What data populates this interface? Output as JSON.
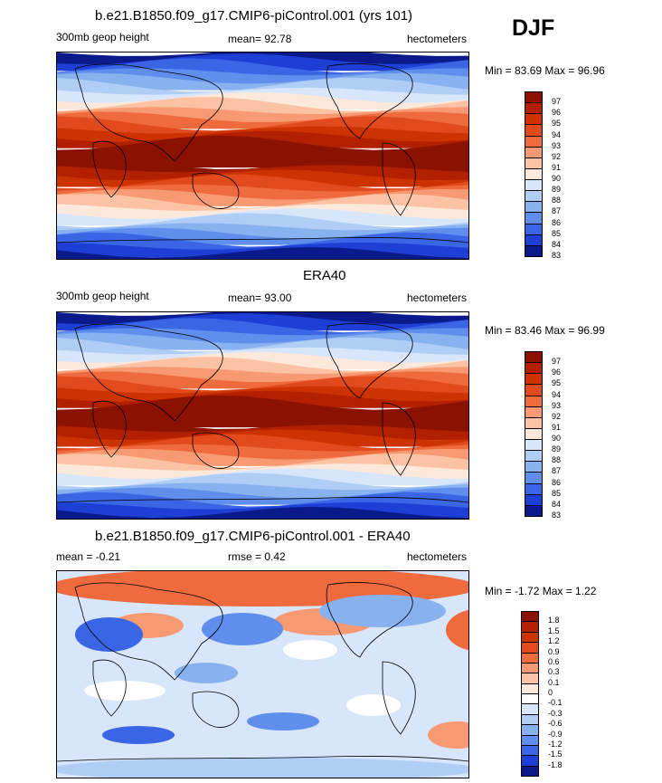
{
  "season": "DJF",
  "panels": [
    {
      "id": "model",
      "title": "b.e21.B1850.f09_g17.CMIP6-piControl.001 (yrs 101)",
      "left_label": "300mb geop height",
      "center_label": "mean=  92.78",
      "right_label": "hectometers",
      "minmax": "Min =  83.69 Max =  96.96",
      "colorbar_labels": [
        "97",
        "96",
        "95",
        "94",
        "93",
        "92",
        "91",
        "90",
        "89",
        "88",
        "87",
        "86",
        "85",
        "84",
        "83"
      ],
      "colors": [
        "#8b1200",
        "#b22000",
        "#cc3300",
        "#e04a1c",
        "#ef6a3c",
        "#f79a73",
        "#fbc3a4",
        "#fde8dc",
        "#d8e6fb",
        "#b0cdf6",
        "#88b1f0",
        "#5f8eec",
        "#3a66e6",
        "#1d3fd6",
        "#0a1a8a"
      ]
    },
    {
      "id": "obs",
      "title": "ERA40",
      "left_label": "300mb geop height",
      "center_label": "mean=  93.00",
      "right_label": "hectometers",
      "minmax": "Min =  83.46 Max =  96.99",
      "colorbar_labels": [
        "97",
        "96",
        "95",
        "94",
        "93",
        "92",
        "91",
        "90",
        "89",
        "88",
        "87",
        "86",
        "85",
        "84",
        "83"
      ],
      "colors": [
        "#8b1200",
        "#b22000",
        "#cc3300",
        "#e04a1c",
        "#ef6a3c",
        "#f79a73",
        "#fbc3a4",
        "#fde8dc",
        "#d8e6fb",
        "#b0cdf6",
        "#88b1f0",
        "#5f8eec",
        "#3a66e6",
        "#1d3fd6",
        "#0a1a8a"
      ]
    },
    {
      "id": "diff",
      "title": "b.e21.B1850.f09_g17.CMIP6-piControl.001 - ERA40",
      "left_label": "mean =  -0.21",
      "center_label": "rmse =   0.42",
      "right_label": "hectometers",
      "minmax": "Min =  -1.72 Max =   1.22",
      "colorbar_labels": [
        "1.8",
        "1.5",
        "1.2",
        "0.9",
        "0.6",
        "0.3",
        "0.1",
        "0",
        "-0.1",
        "-0.3",
        "-0.6",
        "-0.9",
        "-1.2",
        "-1.5",
        "-1.8"
      ],
      "colors": [
        "#8b1200",
        "#b22000",
        "#cc3300",
        "#e04a1c",
        "#ef6a3c",
        "#f79a73",
        "#fbc3a4",
        "#fde8dc",
        "#ffffff",
        "#d8e6fb",
        "#b0cdf6",
        "#88b1f0",
        "#5f8eec",
        "#3a66e6",
        "#1d3fd6",
        "#0a1a8a"
      ]
    }
  ],
  "chart_data": [
    {
      "type": "heatmap",
      "title": "b.e21.B1850.f09_g17.CMIP6-piControl.001 (yrs 101)",
      "variable": "300mb geop height",
      "units": "hectometers",
      "mean": 92.78,
      "min": 83.69,
      "max": 96.96,
      "levels": [
        83,
        84,
        85,
        86,
        87,
        88,
        89,
        90,
        91,
        92,
        93,
        94,
        95,
        96,
        97
      ]
    },
    {
      "type": "heatmap",
      "title": "ERA40",
      "variable": "300mb geop height",
      "units": "hectometers",
      "mean": 93.0,
      "min": 83.46,
      "max": 96.99,
      "levels": [
        83,
        84,
        85,
        86,
        87,
        88,
        89,
        90,
        91,
        92,
        93,
        94,
        95,
        96,
        97
      ]
    },
    {
      "type": "heatmap",
      "title": "b.e21.B1850.f09_g17.CMIP6-piControl.001 - ERA40",
      "units": "hectometers",
      "mean": -0.21,
      "rmse": 0.42,
      "min": -1.72,
      "max": 1.22,
      "levels": [
        -1.8,
        -1.5,
        -1.2,
        -0.9,
        -0.6,
        -0.3,
        -0.1,
        0,
        0.1,
        0.3,
        0.6,
        0.9,
        1.2,
        1.5,
        1.8
      ]
    }
  ]
}
